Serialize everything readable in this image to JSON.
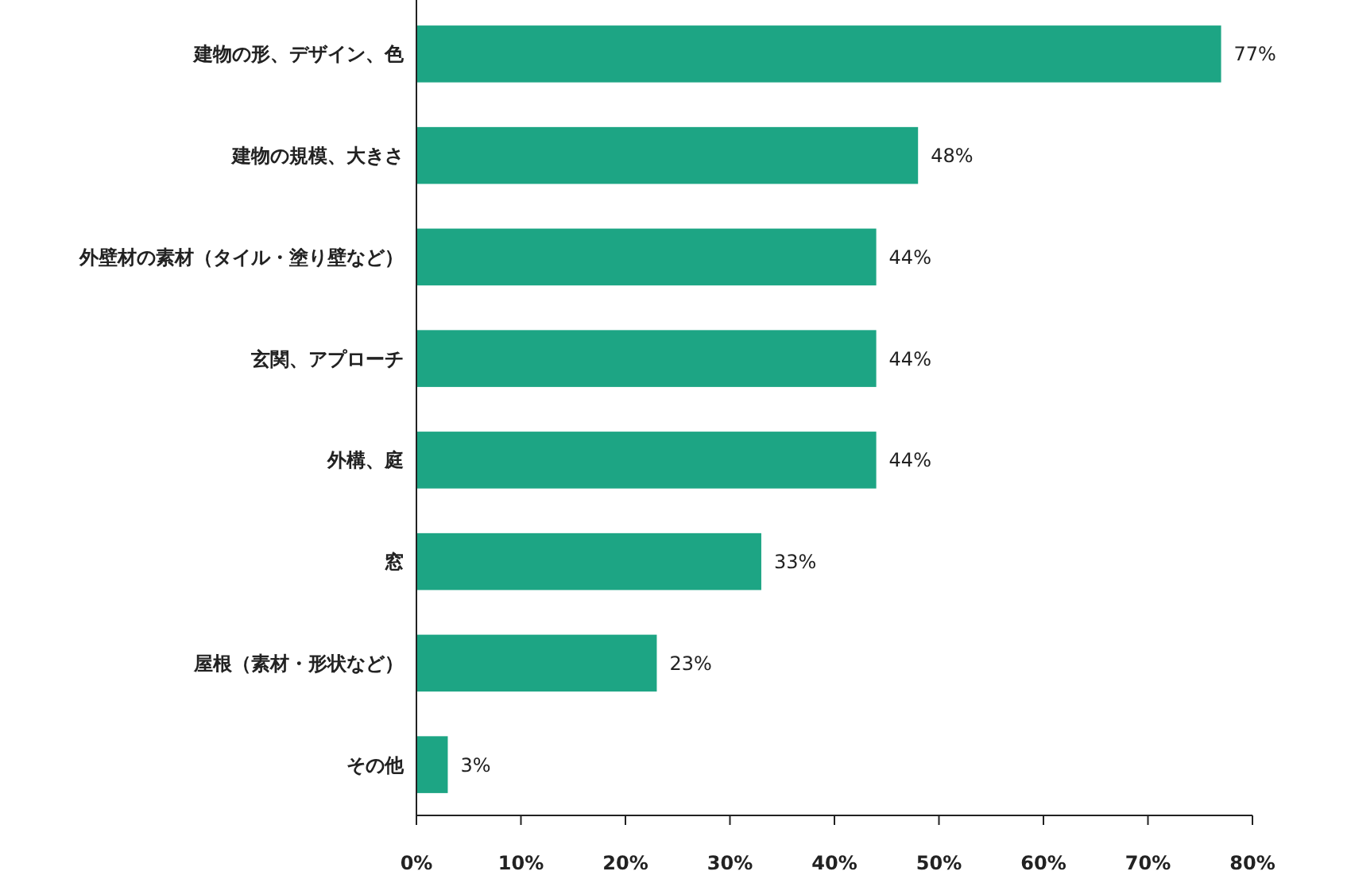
{
  "chart_data": {
    "type": "bar",
    "orientation": "horizontal",
    "categories": [
      "建物の形、デザイン、色",
      "建物の規模、大きさ",
      "外壁材の素材（タイル・塗り壁など）",
      "玄関、アプローチ",
      "外構、庭",
      "窓",
      "屋根（素材・形状など）",
      "その他"
    ],
    "values": [
      77,
      48,
      44,
      44,
      44,
      33,
      23,
      3
    ],
    "value_labels": [
      "77%",
      "48%",
      "44%",
      "44%",
      "44%",
      "33%",
      "23%",
      "3%"
    ],
    "color": "#1da584",
    "xlim": [
      0,
      80
    ],
    "xticks": [
      {
        "value": 0,
        "label": "0%"
      },
      {
        "value": 10,
        "label": "10%"
      },
      {
        "value": 20,
        "label": "20%"
      },
      {
        "value": 30,
        "label": "30%"
      },
      {
        "value": 40,
        "label": "40%"
      },
      {
        "value": 50,
        "label": "50%"
      },
      {
        "value": 60,
        "label": "60%"
      },
      {
        "value": 70,
        "label": "70%"
      },
      {
        "value": 80,
        "label": "80%"
      }
    ],
    "grid": false
  }
}
